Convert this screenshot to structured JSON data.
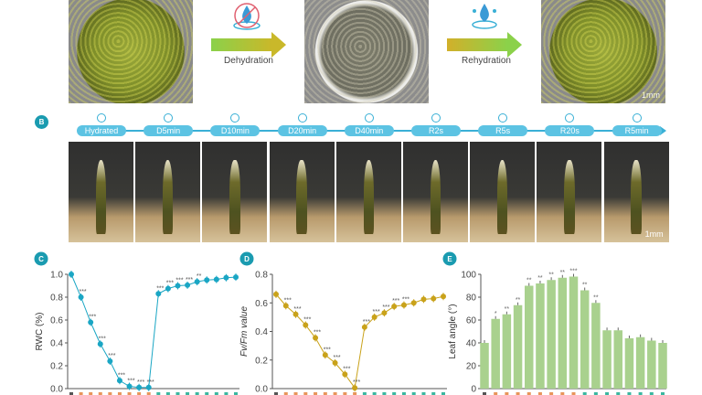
{
  "panel_a": {
    "dehydration_label": "Dehydration",
    "rehydration_label": "Rehydration",
    "scale_bar": "1mm",
    "icons": [
      "no-water-drop-icon",
      "water-drop-splash-icon"
    ]
  },
  "panel_b": {
    "label": "B",
    "scale_bar": "1mm",
    "stages": [
      "Hydrated",
      "D5min",
      "D10min",
      "D20min",
      "D40min",
      "R2s",
      "R5s",
      "R20s",
      "R5min"
    ]
  },
  "colors": {
    "panel_label": "#1a9bb0",
    "timeline": "#5cc3e3",
    "rwc": "#1aa6c4",
    "fvfm": "#c9a21a",
    "leaf": "#a9d18e",
    "dehydration_tick": "#e8955a",
    "rehydration_tick": "#3bb7a0"
  },
  "chart_data": [
    {
      "panel": "C",
      "type": "line",
      "ylabel": "RWC (%)",
      "ylim": [
        0,
        1.0
      ],
      "yticks": [
        "0.0",
        "0.2",
        "0.4",
        "0.6",
        "0.8",
        "1.0"
      ],
      "values": [
        1.0,
        0.8,
        0.58,
        0.39,
        0.24,
        0.07,
        0.02,
        0.01,
        0.01,
        0.83,
        0.875,
        0.9,
        0.905,
        0.935,
        0.95,
        0.955,
        0.97,
        0.975
      ],
      "significance": [
        "",
        "***",
        "***",
        "***",
        "***",
        "***",
        "***",
        "***",
        "***",
        "***",
        "***",
        "***",
        "***",
        "**",
        "",
        "",
        "",
        ""
      ]
    },
    {
      "panel": "D",
      "type": "line",
      "ylabel": "Fv/Fm value",
      "ylim": [
        0,
        0.8
      ],
      "yticks": [
        "0.0",
        "0.2",
        "0.4",
        "0.6",
        "0.8"
      ],
      "values": [
        0.66,
        0.58,
        0.52,
        0.445,
        0.355,
        0.235,
        0.18,
        0.1,
        0.005,
        0.43,
        0.5,
        0.53,
        0.575,
        0.585,
        0.6,
        0.625,
        0.63,
        0.645
      ],
      "significance": [
        "",
        "***",
        "***",
        "***",
        "***",
        "***",
        "***",
        "***",
        "***",
        "***",
        "***",
        "***",
        "***",
        "***",
        "",
        "",
        "",
        ""
      ]
    },
    {
      "panel": "E",
      "type": "bar",
      "ylabel": "Leaf angle (°)",
      "ylim": [
        0,
        100
      ],
      "yticks": [
        "0",
        "20",
        "40",
        "60",
        "80",
        "100"
      ],
      "values": [
        40,
        61,
        65,
        73,
        90,
        92,
        95,
        97,
        98,
        86,
        75,
        51,
        51,
        44,
        45,
        42,
        40
      ],
      "significance": [
        "",
        "*",
        "**",
        "**",
        "**",
        "**",
        "**",
        "**",
        "***",
        "**",
        "**",
        "",
        "",
        "",
        "",
        "",
        ""
      ]
    }
  ]
}
